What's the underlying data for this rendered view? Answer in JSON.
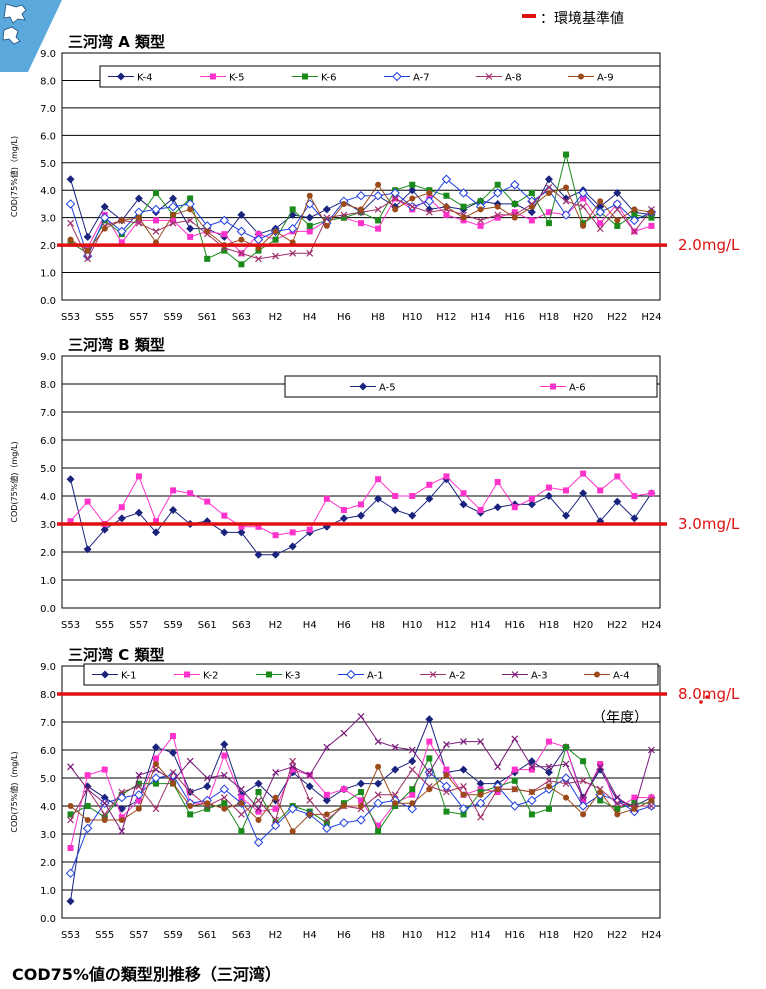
{
  "figure": {
    "legend_std": "：環境基準値",
    "xaxis_unit": "（年度）",
    "caption": "COD75%値の類型別推移（三河湾）"
  },
  "chart_data": [
    {
      "type": "line",
      "title": "三河湾 A 類型",
      "ylabel": "COD(75%値)（mg/L)",
      "ylim": [
        0,
        9
      ],
      "yticks": [
        "0.0",
        "1.0",
        "2.0",
        "3.0",
        "4.0",
        "5.0",
        "6.0",
        "7.0",
        "8.0",
        "9.0"
      ],
      "x_tick_labels": [
        "S53",
        "S55",
        "S57",
        "S59",
        "S61",
        "S63",
        "H2",
        "H4",
        "H6",
        "H8",
        "H10",
        "H12",
        "H14",
        "H16",
        "H18",
        "H20",
        "H22",
        "H24"
      ],
      "standard": {
        "value": 2.0,
        "label": "2.0mg/L"
      },
      "grid": true,
      "legend_position": "top",
      "series": [
        {
          "name": "K-4",
          "color": "#1a237e",
          "marker": "diamond",
          "values": [
            4.4,
            2.3,
            3.4,
            2.9,
            3.7,
            3.2,
            3.7,
            2.6,
            2.6,
            2.3,
            3.1,
            2.4,
            2.6,
            3.1,
            3.0,
            3.3,
            3.6,
            3.2,
            3.8,
            3.4,
            4.0,
            3.3,
            3.4,
            3.3,
            3.6,
            3.5,
            3.5,
            3.2,
            4.4,
            3.7,
            4.0,
            3.4,
            3.9,
            3.2,
            3.1
          ]
        },
        {
          "name": "K-5",
          "color": "#ff33cc",
          "marker": "square",
          "values": [
            2.1,
            1.9,
            3.1,
            2.1,
            2.9,
            2.9,
            2.9,
            2.3,
            2.5,
            2.4,
            1.7,
            2.4,
            2.2,
            2.5,
            2.5,
            2.9,
            3.0,
            2.8,
            2.6,
            3.7,
            3.3,
            3.7,
            3.1,
            2.9,
            2.7,
            3.0,
            3.2,
            2.9,
            3.2,
            3.1,
            3.7,
            2.8,
            3.5,
            2.5,
            2.7
          ]
        },
        {
          "name": "K-6",
          "color": "#1a8a1a",
          "marker": "square",
          "values": [
            2.1,
            1.7,
            2.9,
            2.4,
            3.0,
            3.9,
            3.1,
            3.7,
            1.5,
            1.8,
            1.3,
            1.8,
            2.2,
            3.3,
            2.7,
            2.9,
            3.0,
            3.2,
            2.9,
            4.0,
            4.2,
            4.0,
            3.8,
            3.4,
            3.6,
            4.2,
            3.5,
            3.9,
            2.8,
            5.3,
            2.8,
            3.2,
            2.7,
            3.1,
            3.0
          ]
        },
        {
          "name": "A-7",
          "color": "#1f3fe0",
          "marker": "diamond-open",
          "values": [
            3.5,
            1.6,
            3.0,
            2.5,
            3.2,
            3.3,
            3.4,
            3.5,
            2.7,
            2.9,
            2.5,
            2.2,
            2.5,
            2.6,
            3.5,
            2.8,
            3.6,
            3.8,
            3.8,
            3.9,
            3.4,
            3.6,
            4.4,
            3.9,
            3.4,
            3.9,
            4.2,
            3.6,
            4.0,
            3.1,
            3.9,
            3.2,
            3.5,
            2.9,
            3.2
          ]
        },
        {
          "name": "A-8",
          "color": "#a0306a",
          "marker": "x",
          "values": [
            2.8,
            1.5,
            2.7,
            2.9,
            2.8,
            2.5,
            2.8,
            2.9,
            2.4,
            1.9,
            1.7,
            1.5,
            1.6,
            1.7,
            1.7,
            3.0,
            3.1,
            3.2,
            3.3,
            3.7,
            3.4,
            3.2,
            3.3,
            3.1,
            2.9,
            3.1,
            3.1,
            3.5,
            4.1,
            3.6,
            3.4,
            2.6,
            3.3,
            2.5,
            3.3
          ]
        },
        {
          "name": "A-9",
          "color": "#9c4a1a",
          "marker": "circle",
          "values": [
            2.2,
            1.8,
            2.6,
            2.9,
            3.0,
            2.1,
            3.1,
            3.3,
            2.5,
            2.0,
            2.2,
            1.9,
            2.5,
            2.1,
            3.8,
            2.7,
            3.5,
            3.3,
            4.2,
            3.3,
            3.7,
            3.9,
            3.4,
            3.0,
            3.3,
            3.4,
            3.0,
            3.4,
            3.9,
            4.1,
            2.7,
            3.6,
            2.9,
            3.3,
            3.2
          ]
        }
      ]
    },
    {
      "type": "line",
      "title": "三河湾 B 類型",
      "ylabel": "COD(75%値)（mg/L)",
      "ylim": [
        0,
        9
      ],
      "yticks": [
        "0.0",
        "1.0",
        "2.0",
        "3.0",
        "4.0",
        "5.0",
        "6.0",
        "7.0",
        "8.0",
        "9.0"
      ],
      "x_tick_labels": [
        "S53",
        "S55",
        "S57",
        "S59",
        "S61",
        "S63",
        "H2",
        "H4",
        "H6",
        "H8",
        "H10",
        "H12",
        "H14",
        "H16",
        "H18",
        "H20",
        "H22",
        "H24"
      ],
      "standard": {
        "value": 3.0,
        "label": "3.0mg/L"
      },
      "grid": true,
      "legend_position": "top-right",
      "series": [
        {
          "name": "A-5",
          "color": "#1a237e",
          "marker": "diamond",
          "values": [
            4.6,
            2.1,
            2.8,
            3.2,
            3.4,
            2.7,
            3.5,
            3.0,
            3.1,
            2.7,
            2.7,
            1.9,
            1.9,
            2.2,
            2.7,
            2.9,
            3.2,
            3.3,
            3.9,
            3.5,
            3.3,
            3.9,
            4.6,
            3.7,
            3.4,
            3.6,
            3.7,
            3.7,
            4.0,
            3.3,
            4.1,
            3.1,
            3.8,
            3.2,
            4.1
          ]
        },
        {
          "name": "A-6",
          "color": "#ff33cc",
          "marker": "square",
          "values": [
            3.1,
            3.8,
            3.0,
            3.6,
            4.7,
            3.1,
            4.2,
            4.1,
            3.8,
            3.3,
            2.9,
            2.9,
            2.6,
            2.7,
            2.8,
            3.9,
            3.5,
            3.7,
            4.6,
            4.0,
            4.0,
            4.4,
            4.7,
            4.1,
            3.5,
            4.5,
            3.6,
            3.9,
            4.3,
            4.2,
            4.8,
            4.2,
            4.7,
            4.0,
            4.1
          ]
        }
      ]
    },
    {
      "type": "line",
      "title": "三河湾 C 類型",
      "ylabel": "COD(75%値)（mg/L)",
      "ylim": [
        0,
        9
      ],
      "yticks": [
        "0.0",
        "1.0",
        "2.0",
        "3.0",
        "4.0",
        "5.0",
        "6.0",
        "7.0",
        "8.0",
        "9.0"
      ],
      "x_tick_labels": [
        "S53",
        "S55",
        "S57",
        "S59",
        "S61",
        "S63",
        "H2",
        "H4",
        "H6",
        "H8",
        "H10",
        "H12",
        "H14",
        "H16",
        "H18",
        "H20",
        "H22",
        "H24"
      ],
      "standard": {
        "value": 8.0,
        "label": "8.0mg/L"
      },
      "grid": true,
      "legend_position": "top",
      "series": [
        {
          "name": "K-1",
          "color": "#1a237e",
          "marker": "diamond",
          "values": [
            0.6,
            4.7,
            4.3,
            3.9,
            4.2,
            6.1,
            5.9,
            4.5,
            4.7,
            6.2,
            4.4,
            4.8,
            4.2,
            5.2,
            4.7,
            4.2,
            4.6,
            4.8,
            4.8,
            5.3,
            5.6,
            7.1,
            5.2,
            5.3,
            4.8,
            4.8,
            5.2,
            5.6,
            5.2,
            6.1,
            4.3,
            5.3,
            4.2,
            4.0,
            4.3
          ]
        },
        {
          "name": "K-2",
          "color": "#ff33cc",
          "marker": "square",
          "values": [
            2.5,
            5.1,
            5.3,
            3.6,
            4.2,
            5.7,
            6.5,
            4.1,
            4.1,
            5.8,
            4.3,
            3.8,
            3.9,
            5.3,
            5.1,
            4.4,
            4.6,
            4.2,
            3.3,
            4.1,
            4.4,
            6.3,
            5.3,
            4.4,
            4.6,
            4.5,
            5.3,
            5.3,
            6.3,
            6.1,
            4.2,
            5.5,
            3.9,
            4.3,
            4.3
          ]
        },
        {
          "name": "K-3",
          "color": "#1a8a1a",
          "marker": "square",
          "values": [
            3.7,
            4.0,
            3.6,
            4.4,
            4.8,
            4.8,
            4.8,
            3.7,
            3.9,
            4.1,
            3.1,
            4.5,
            3.4,
            4.0,
            3.8,
            3.4,
            4.1,
            4.5,
            3.1,
            4.0,
            4.6,
            5.7,
            3.8,
            3.7,
            4.5,
            4.7,
            4.9,
            3.7,
            3.9,
            6.1,
            5.6,
            4.2,
            3.9,
            4.1,
            4.1
          ]
        },
        {
          "name": "A-1",
          "color": "#1f3fe0",
          "marker": "diamond-open",
          "values": [
            1.6,
            3.2,
            4.1,
            4.3,
            4.4,
            5.0,
            5.1,
            4.1,
            4.2,
            4.6,
            4.1,
            2.7,
            3.3,
            3.9,
            3.7,
            3.2,
            3.4,
            3.5,
            4.1,
            4.2,
            3.9,
            5.2,
            4.7,
            3.9,
            4.1,
            4.7,
            4.0,
            4.2,
            4.6,
            5.0,
            4.0,
            4.4,
            4.2,
            3.8,
            4.0
          ]
        },
        {
          "name": "A-2",
          "color": "#a0306a",
          "marker": "x",
          "values": [
            3.5,
            4.6,
            3.7,
            4.5,
            4.7,
            3.9,
            5.2,
            4.5,
            4.0,
            4.3,
            3.7,
            4.2,
            3.5,
            5.6,
            4.2,
            3.5,
            4.0,
            3.9,
            4.4,
            4.4,
            5.3,
            4.7,
            4.5,
            4.7,
            3.6,
            4.6,
            4.6,
            4.5,
            4.9,
            4.8,
            4.9,
            4.6,
            4.1,
            4.0,
            4.0
          ]
        },
        {
          "name": "A-3",
          "color": "#7a1a7a",
          "marker": "x",
          "values": [
            5.4,
            4.6,
            4.1,
            3.1,
            5.1,
            5.3,
            4.9,
            5.6,
            5.0,
            5.1,
            4.6,
            3.9,
            5.2,
            5.4,
            5.1,
            6.1,
            6.6,
            7.2,
            6.3,
            6.1,
            6.0,
            5.2,
            6.2,
            6.3,
            6.3,
            5.4,
            6.4,
            5.4,
            5.4,
            5.5,
            4.3,
            5.4,
            4.3,
            3.9,
            6.0
          ]
        },
        {
          "name": "A-4",
          "color": "#9c4a1a",
          "marker": "circle",
          "values": [
            4.0,
            3.5,
            3.5,
            3.5,
            3.9,
            5.5,
            4.8,
            4.0,
            4.1,
            3.9,
            4.1,
            3.5,
            4.3,
            3.1,
            3.7,
            3.7,
            4.0,
            4.0,
            5.4,
            4.1,
            4.1,
            4.6,
            5.1,
            4.4,
            4.4,
            4.6,
            4.6,
            4.5,
            4.7,
            4.3,
            3.7,
            4.5,
            3.7,
            3.9,
            4.2
          ]
        }
      ]
    }
  ]
}
